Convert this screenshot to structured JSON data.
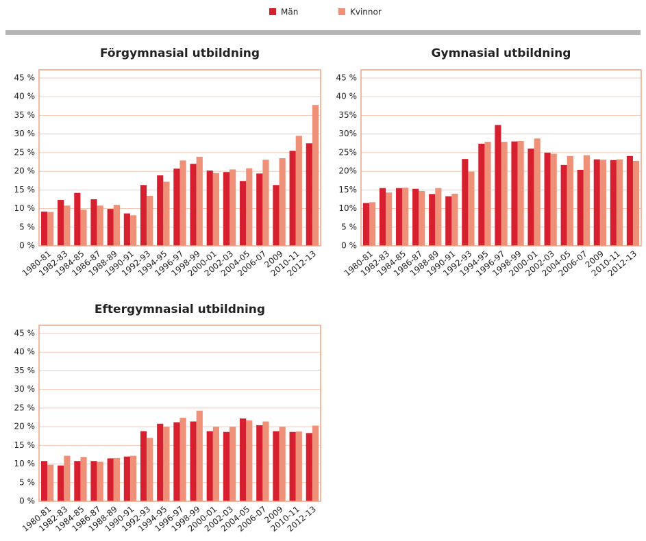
{
  "chart_data": [
    {
      "type": "bar",
      "title": "Förgymnasial utbildning",
      "categories": [
        "1980-81",
        "1982-83",
        "1984-85",
        "1986-87",
        "1988-89",
        "1990-91",
        "1992-93",
        "1994-95",
        "1996-97",
        "1998-99",
        "2000-01",
        "2002-03",
        "2004-05",
        "2006-07",
        "2009",
        "2010-11",
        "2012-13"
      ],
      "series": [
        {
          "name": "Män",
          "color": "#d7202f",
          "values": [
            9.2,
            12.3,
            14.2,
            12.5,
            9.9,
            8.7,
            16.3,
            18.9,
            20.7,
            22.0,
            20.2,
            19.8,
            17.4,
            19.4,
            16.3,
            25.5,
            27.5
          ]
        },
        {
          "name": "Kvinnor",
          "color": "#ef9179",
          "values": [
            9.1,
            10.8,
            9.7,
            10.8,
            11.0,
            8.2,
            13.4,
            17.2,
            22.9,
            23.9,
            19.5,
            20.5,
            20.8,
            23.1,
            23.5,
            29.5,
            37.8
          ]
        }
      ],
      "ylim": [
        0,
        45
      ],
      "yticks": [
        {
          "value": 0,
          "label": "0 %"
        },
        {
          "value": 5,
          "label": "5 %"
        },
        {
          "value": 10,
          "label": "10 %"
        },
        {
          "value": 15,
          "label": "15 %"
        },
        {
          "value": 20,
          "label": "20 %"
        },
        {
          "value": 25,
          "label": "25 %"
        },
        {
          "value": 30,
          "label": "30 %"
        },
        {
          "value": 35,
          "label": "35 %"
        },
        {
          "value": 40,
          "label": "40 %"
        },
        {
          "value": 45,
          "label": "45 %"
        }
      ],
      "grid": true
    },
    {
      "type": "bar",
      "title": "Gymnasial utbildning",
      "categories": [
        "1980-81",
        "1982-83",
        "1984-85",
        "1986-87",
        "1988-89",
        "1990-91",
        "1992-93",
        "1994-95",
        "1996-97",
        "1998-99",
        "2000-01",
        "2002-03",
        "2004-05",
        "2006-07",
        "2009",
        "2010-11",
        "2012-13"
      ],
      "series": [
        {
          "name": "Män",
          "color": "#d7202f",
          "values": [
            11.5,
            15.5,
            15.5,
            15.3,
            13.9,
            13.3,
            23.3,
            27.4,
            32.4,
            28.0,
            26.1,
            25.0,
            21.7,
            20.4,
            23.2,
            23.0,
            24.1
          ]
        },
        {
          "name": "Kvinnor",
          "color": "#ef9179",
          "values": [
            11.7,
            14.3,
            15.6,
            14.7,
            15.5,
            14.0,
            19.9,
            27.9,
            27.9,
            28.1,
            28.8,
            24.7,
            24.1,
            24.3,
            23.1,
            23.2,
            22.8
          ]
        }
      ],
      "ylim": [
        0,
        45
      ],
      "yticks": [
        {
          "value": 0,
          "label": "0 %"
        },
        {
          "value": 5,
          "label": "5 %"
        },
        {
          "value": 10,
          "label": "10%"
        },
        {
          "value": 15,
          "label": "15%"
        },
        {
          "value": 20,
          "label": "20%"
        },
        {
          "value": 25,
          "label": "25%"
        },
        {
          "value": 30,
          "label": "30%"
        },
        {
          "value": 35,
          "label": "35%"
        },
        {
          "value": 40,
          "label": "40 %"
        },
        {
          "value": 45,
          "label": "45 %"
        }
      ],
      "grid": true
    },
    {
      "type": "bar",
      "title": "Eftergymnasial utbildning",
      "categories": [
        "1980-81",
        "1982-83",
        "1984-85",
        "1986-87",
        "1988-89",
        "1990-91",
        "1992-93",
        "1994-95",
        "1996-97",
        "1998-99",
        "2000-01",
        "2002-03",
        "2004-05",
        "2006-07",
        "2009",
        "2010-11",
        "2012-13"
      ],
      "series": [
        {
          "name": "Män",
          "color": "#d7202f",
          "values": [
            10.8,
            9.6,
            10.8,
            10.8,
            11.5,
            12.0,
            18.8,
            20.8,
            21.2,
            21.4,
            18.8,
            18.6,
            22.2,
            20.4,
            18.8,
            18.6,
            18.3
          ]
        },
        {
          "name": "Kvinnor",
          "color": "#ef9179",
          "values": [
            9.8,
            12.2,
            11.9,
            10.6,
            11.6,
            12.2,
            17.0,
            20.0,
            22.4,
            24.3,
            20.0,
            20.0,
            21.7,
            21.4,
            20.0,
            18.7,
            20.3
          ]
        }
      ],
      "ylim": [
        0,
        45
      ],
      "yticks": [
        {
          "value": 0,
          "label": "0 %"
        },
        {
          "value": 5,
          "label": "5 %"
        },
        {
          "value": 10,
          "label": "10 %"
        },
        {
          "value": 15,
          "label": "15 %"
        },
        {
          "value": 20,
          "label": "20 %"
        },
        {
          "value": 25,
          "label": "25 %"
        },
        {
          "value": 30,
          "label": "30 %"
        },
        {
          "value": 35,
          "label": "35 %"
        },
        {
          "value": 40,
          "label": "40 %"
        },
        {
          "value": 45,
          "label": "45 %"
        }
      ],
      "grid": true
    }
  ]
}
